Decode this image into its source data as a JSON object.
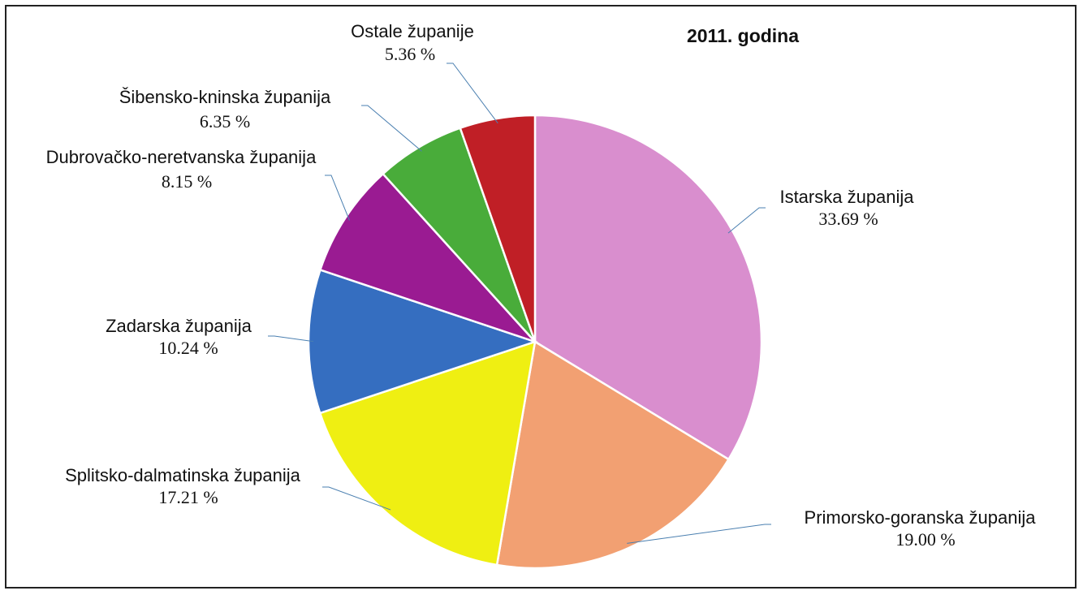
{
  "chart_data": {
    "type": "pie",
    "title": "2011. godina",
    "categories": [
      "Istarska županija",
      "Primorsko-goranska županija",
      "Splitsko-dalmatinska županija",
      "Zadarska županija",
      "Dubrovačko-neretvanska županija",
      "Šibensko-kninska županija",
      "Ostale županije"
    ],
    "values": [
      33.69,
      19.0,
      17.21,
      10.24,
      8.15,
      6.35,
      5.36
    ],
    "value_labels": [
      "33.69 %",
      "19.00 %",
      "17.21 %",
      "10.24 %",
      "8.15 %",
      "6.35 %",
      "5.36 %"
    ],
    "colors": [
      "#D98ECE",
      "#F2A072",
      "#EFEF12",
      "#356EC0",
      "#9A1B92",
      "#49AC3A",
      "#C01F26"
    ],
    "legend": "none"
  }
}
